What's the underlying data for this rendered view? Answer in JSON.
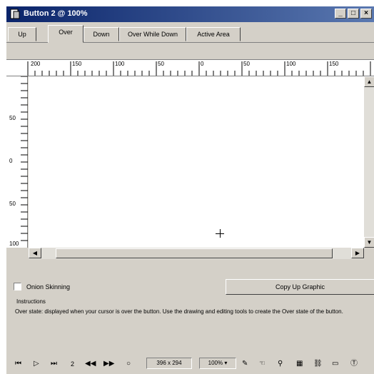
{
  "window": {
    "title": "Button 2 @ 100%"
  },
  "titlebar_buttons": {
    "minimize": "_",
    "maximize": "□",
    "close": "×"
  },
  "tabs": [
    {
      "label": "Up"
    },
    {
      "label": "Over"
    },
    {
      "label": "Down"
    },
    {
      "label": "Over While Down"
    },
    {
      "label": "Active Area"
    }
  ],
  "active_tab": "Over",
  "hruler": {
    "labels": [
      "200",
      "150",
      "100",
      "50",
      "0",
      "50",
      "100",
      "150"
    ]
  },
  "vruler": {
    "labels": [
      "50",
      "0",
      "50",
      "100"
    ]
  },
  "options": {
    "onion_skinning_label": "Onion Skinning",
    "copy_button_label": "Copy Up Graphic"
  },
  "instructions": {
    "title": "Instructions",
    "text": "Over state: displayed when your cursor is over the button. Use the drawing and editing tools to create the Over state of the button."
  },
  "statusbar": {
    "frame": "2",
    "dimensions": "396 x 294",
    "zoom": "100%"
  },
  "colors": {
    "title_start": "#0a246a",
    "title_end": "#5a78b0",
    "face": "#d4d0c8"
  }
}
